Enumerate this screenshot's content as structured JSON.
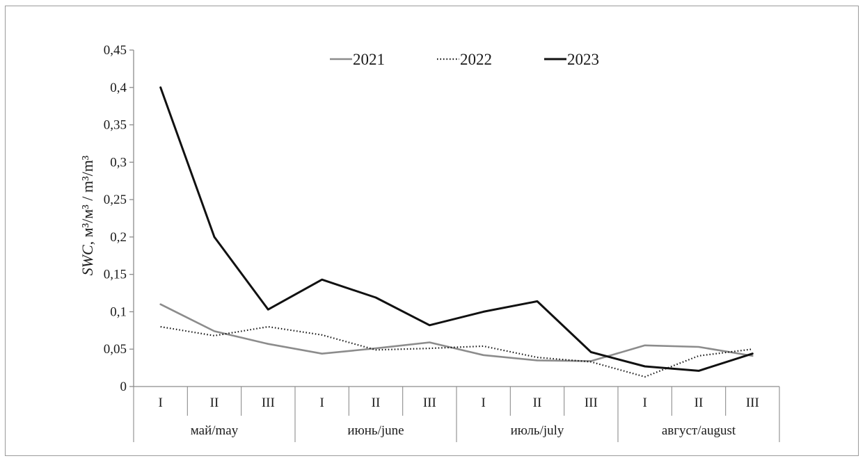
{
  "chart_data": {
    "type": "line",
    "ylabel": {
      "var": "SWC",
      "unit": ", м³/м³ / m³/m³"
    },
    "ylim": [
      0,
      0.45
    ],
    "yticks": [
      {
        "v": 0,
        "label": "0"
      },
      {
        "v": 0.05,
        "label": "0,05"
      },
      {
        "v": 0.1,
        "label": "0,1"
      },
      {
        "v": 0.15,
        "label": "0,15"
      },
      {
        "v": 0.2,
        "label": "0,2"
      },
      {
        "v": 0.25,
        "label": "0,25"
      },
      {
        "v": 0.3,
        "label": "0,3"
      },
      {
        "v": 0.35,
        "label": "0,35"
      },
      {
        "v": 0.4,
        "label": "0,4"
      },
      {
        "v": 0.45,
        "label": "0,45"
      }
    ],
    "categories": [
      "I",
      "II",
      "III",
      "I",
      "II",
      "III",
      "I",
      "II",
      "III",
      "I",
      "II",
      "III"
    ],
    "groups": [
      "май/may",
      "июнь/june",
      "июль/july",
      "август/august"
    ],
    "legend_position": "top",
    "grid": false,
    "series": [
      {
        "name": "2021",
        "color": "#8c8c8c",
        "style": "solid",
        "values": [
          0.11,
          0.074,
          0.057,
          0.044,
          0.051,
          0.059,
          0.042,
          0.035,
          0.034,
          0.055,
          0.053,
          0.041
        ]
      },
      {
        "name": "2022",
        "color": "#111111",
        "style": "dotted",
        "values": [
          0.08,
          0.068,
          0.08,
          0.069,
          0.049,
          0.051,
          0.054,
          0.039,
          0.033,
          0.013,
          0.041,
          0.05
        ]
      },
      {
        "name": "2023",
        "color": "#111111",
        "style": "solid",
        "values": [
          0.4,
          0.2,
          0.103,
          0.143,
          0.119,
          0.082,
          0.1,
          0.114,
          0.046,
          0.027,
          0.021,
          0.044
        ]
      }
    ]
  }
}
